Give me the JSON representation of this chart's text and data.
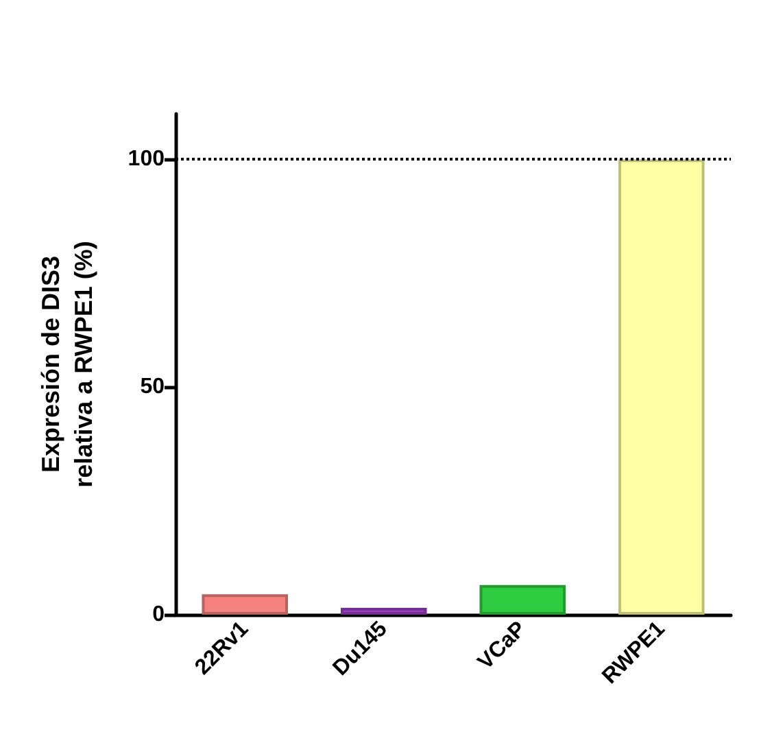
{
  "chart_data": {
    "type": "bar",
    "ylabel": "Expresión de DIS3\nrelativa a RWPE1 (%)",
    "categories": [
      "22Rv1",
      "Du145",
      "VCaP",
      "RWPE1"
    ],
    "values": [
      4.5,
      1.5,
      6.5,
      100
    ],
    "colors": [
      "#f4827f",
      "#9b3fc4",
      "#2ecc40",
      "#ffffa6"
    ],
    "ylim": [
      0,
      110
    ],
    "yticks": [
      0,
      50,
      100
    ],
    "grid": false,
    "ref_lines": [
      {
        "axis": "y",
        "value": 100,
        "line_style": "dotted",
        "color": "#000000"
      }
    ]
  }
}
